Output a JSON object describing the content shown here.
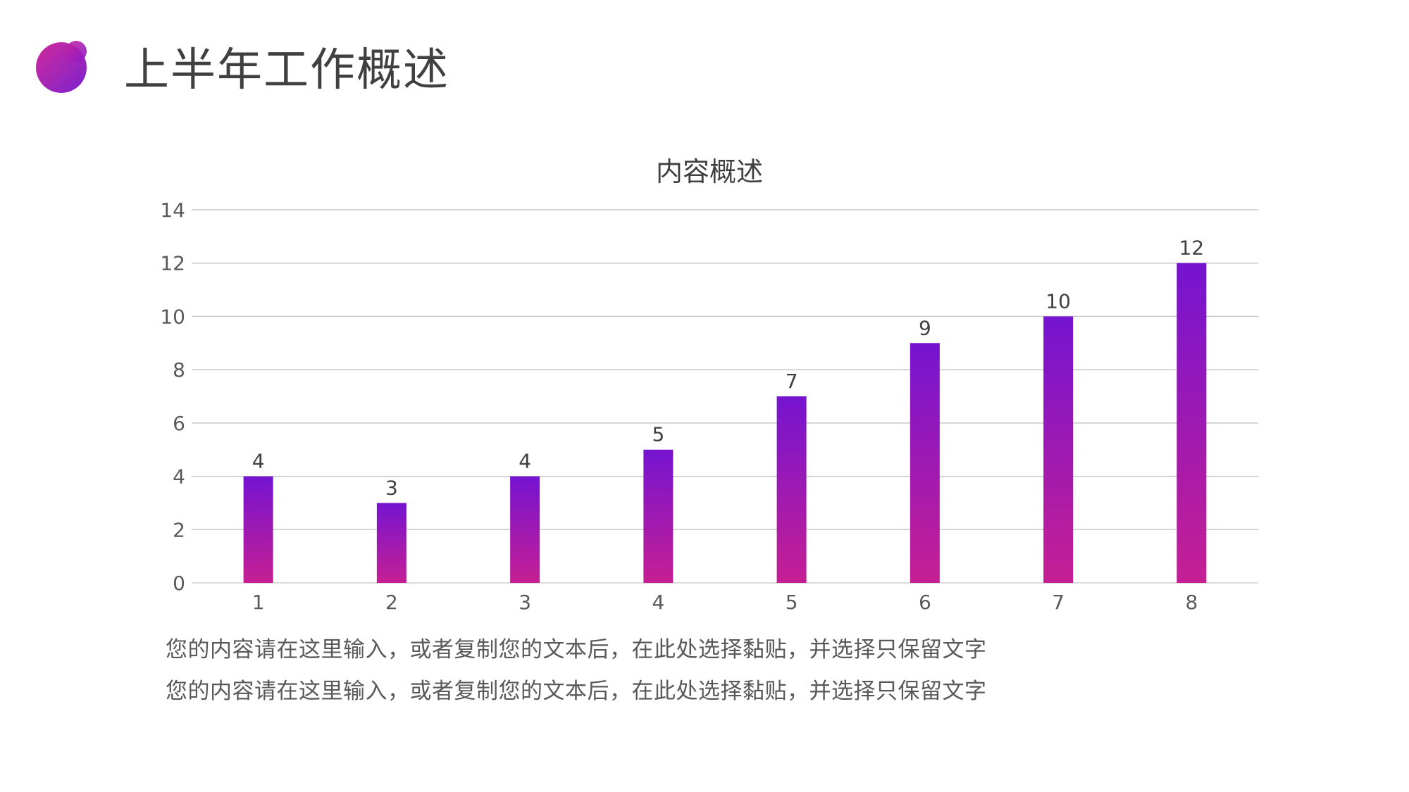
{
  "header": {
    "title": "上半年工作概述",
    "logo_colors": [
      "#c8259a",
      "#7b1fd0"
    ]
  },
  "chart_data": {
    "type": "bar",
    "title": "内容概述",
    "categories": [
      "1",
      "2",
      "3",
      "4",
      "5",
      "6",
      "7",
      "8"
    ],
    "values": [
      4,
      3,
      4,
      5,
      7,
      9,
      10,
      12
    ],
    "ylim": [
      0,
      14
    ],
    "yticks": [
      0,
      2,
      4,
      6,
      8,
      10,
      12,
      14
    ],
    "grid": true,
    "data_labels": true,
    "bar_gradient": {
      "top": "#7514d1",
      "bottom": "#c61f93"
    }
  },
  "body": {
    "lines": [
      "您的内容请在这里输入，或者复制您的文本后，在此处选择黏贴，并选择只保留文字",
      "您的内容请在这里输入，或者复制您的文本后，在此处选择黏贴，并选择只保留文字"
    ]
  }
}
